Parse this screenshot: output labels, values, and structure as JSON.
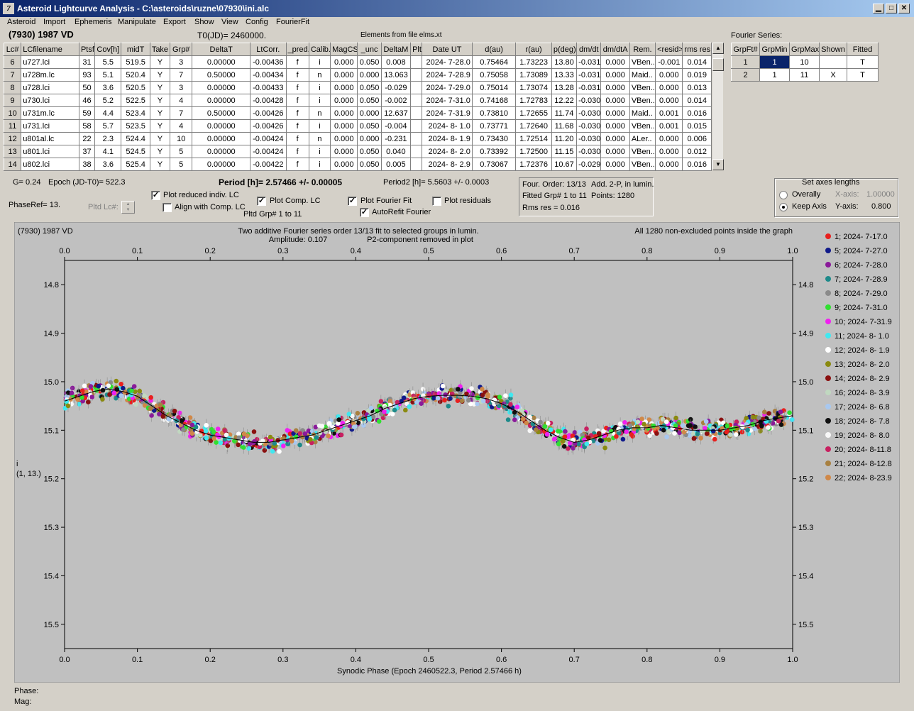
{
  "window": {
    "title": "Asteroid Lightcurve Analysis - C:\\asteroids\\ruzne\\07930\\ini.alc"
  },
  "menu": [
    "Asteroid",
    "Import",
    "Ephemeris",
    "Manipulate",
    "Export",
    "Show",
    "View",
    "Config",
    "FourierFit"
  ],
  "header": {
    "asteroid": "(7930) 1987 VD",
    "t0": "T0(JD)= 2460000.",
    "elements": "Elements from file elms.xt"
  },
  "lc_table": {
    "columns": [
      "Lc#",
      "LCfilename",
      "Ptsf",
      "Cov[h]",
      "midT",
      "Take",
      "Grp#",
      "DeltaT",
      "LtCorr.",
      "_pred.",
      "Calib.",
      "MagCS",
      "_unc",
      "DeltaM",
      "Plt",
      "Date UT",
      "d(au)",
      "r(au)",
      "p(deg)",
      "dm/dt",
      "dm/dtA",
      "Rem.",
      "<resid>",
      "rms res"
    ],
    "rows": [
      [
        "6",
        "u727.lci",
        "31",
        "5.5",
        "519.5",
        "Y",
        "3",
        "0.00000",
        "-0.00436",
        "f",
        "i",
        "0.000",
        "0.050",
        "0.008",
        "",
        "2024- 7-28.0",
        "0.75464",
        "1.73223",
        "13.80",
        "-0.031",
        "0.000",
        "VBen..",
        "-0.001",
        "0.014"
      ],
      [
        "7",
        "u728m.lc",
        "93",
        "5.1",
        "520.4",
        "Y",
        "7",
        "0.50000",
        "-0.00434",
        "f",
        "n",
        "0.000",
        "0.000",
        "13.063",
        "",
        "2024- 7-28.9",
        "0.75058",
        "1.73089",
        "13.33",
        "-0.031",
        "0.000",
        "Maid..",
        "0.000",
        "0.019"
      ],
      [
        "8",
        "u728.lci",
        "50",
        "3.6",
        "520.5",
        "Y",
        "3",
        "0.00000",
        "-0.00433",
        "f",
        "i",
        "0.000",
        "0.050",
        "-0.029",
        "",
        "2024- 7-29.0",
        "0.75014",
        "1.73074",
        "13.28",
        "-0.031",
        "0.000",
        "VBen..",
        "0.000",
        "0.013"
      ],
      [
        "9",
        "u730.lci",
        "46",
        "5.2",
        "522.5",
        "Y",
        "4",
        "0.00000",
        "-0.00428",
        "f",
        "i",
        "0.000",
        "0.050",
        "-0.002",
        "",
        "2024- 7-31.0",
        "0.74168",
        "1.72783",
        "12.22",
        "-0.030",
        "0.000",
        "VBen..",
        "0.000",
        "0.014"
      ],
      [
        "10",
        "u731m.lc",
        "59",
        "4.4",
        "523.4",
        "Y",
        "7",
        "0.50000",
        "-0.00426",
        "f",
        "n",
        "0.000",
        "0.000",
        "12.637",
        "",
        "2024- 7-31.9",
        "0.73810",
        "1.72655",
        "11.74",
        "-0.030",
        "0.000",
        "Maid..",
        "0.001",
        "0.016"
      ],
      [
        "11",
        "u731.lci",
        "58",
        "5.7",
        "523.5",
        "Y",
        "4",
        "0.00000",
        "-0.00426",
        "f",
        "i",
        "0.000",
        "0.050",
        "-0.004",
        "",
        "2024- 8- 1.0",
        "0.73771",
        "1.72640",
        "11.68",
        "-0.030",
        "0.000",
        "VBen..",
        "0.001",
        "0.015"
      ],
      [
        "12",
        "u801al.lc",
        "22",
        "2.3",
        "524.4",
        "Y",
        "10",
        "0.00000",
        "-0.00424",
        "f",
        "n",
        "0.000",
        "0.000",
        "-0.231",
        "",
        "2024- 8- 1.9",
        "0.73430",
        "1.72514",
        "11.20",
        "-0.030",
        "0.000",
        "ALer..",
        "0.000",
        "0.006"
      ],
      [
        "13",
        "u801.lci",
        "37",
        "4.1",
        "524.5",
        "Y",
        "5",
        "0.00000",
        "-0.00424",
        "f",
        "i",
        "0.000",
        "0.050",
        "0.040",
        "",
        "2024- 8- 2.0",
        "0.73392",
        "1.72500",
        "11.15",
        "-0.030",
        "0.000",
        "VBen..",
        "0.000",
        "0.012"
      ],
      [
        "14",
        "u802.lci",
        "38",
        "3.6",
        "525.4",
        "Y",
        "5",
        "0.00000",
        "-0.00422",
        "f",
        "i",
        "0.000",
        "0.050",
        "0.005",
        "",
        "2024- 8- 2.9",
        "0.73067",
        "1.72376",
        "10.67",
        "-0.029",
        "0.000",
        "VBen..",
        "0.000",
        "0.016"
      ]
    ]
  },
  "fourier_series": {
    "label": "Fourier Series:",
    "columns": [
      "GrpFt#",
      "GrpMin",
      "GrpMax",
      "Shown",
      "Fitted"
    ],
    "rows": [
      [
        "1",
        "1",
        "10",
        "",
        "T"
      ],
      [
        "2",
        "1",
        "11",
        "X",
        "T"
      ]
    ]
  },
  "info": {
    "g": "G= 0.24",
    "epoch": "Epoch (JD-T0)= 522.3",
    "phaseref": "PhaseRef= 13.",
    "pltd_lc": "Pltd Lc#:",
    "period": "Period [h]= 2.57466 +/- 0.00005",
    "period2": "Period2 [h]= 5.5603 +/- 0.0003",
    "pltd_grp": "Pltd Grp#  1   to   11"
  },
  "checkboxes": {
    "plot_reduced": {
      "label": "Plot reduced indiv. LC",
      "checked": true
    },
    "align_comp": {
      "label": "Align with Comp. LC",
      "checked": false
    },
    "plot_comp": {
      "label": "Plot Comp. LC",
      "checked": true
    },
    "plot_fourier": {
      "label": "Plot Fourier Fit",
      "checked": true
    },
    "autorefit": {
      "label": "AutoRefit Fourier",
      "checked": true
    },
    "plot_residuals": {
      "label": "Plot residuals",
      "checked": false
    }
  },
  "fourier_info": {
    "line1a": "Four. Order: 13/13",
    "line1b": "Add. 2-P, in lumin.",
    "line2a": "Fitted Grp# 1 to 11",
    "line2b": "Points: 1280",
    "line3": "Rms res      = 0.016"
  },
  "axes_panel": {
    "title": "Set axes lengths",
    "overally": "Overally",
    "keep_axis": "Keep Axis",
    "selected": "keep_axis",
    "x_label": "X-axis:",
    "x_value": "1.00000",
    "y_label": "Y-axis:",
    "y_value": "0.800"
  },
  "chart_data": {
    "type": "scatter",
    "title_left": "(7930) 1987 VD",
    "title": "Two additive Fourier series order 13/13 fit to selected groups in lumin.",
    "subtitle_a": "Amplitude: 0.107",
    "subtitle_b": "P2-component removed in plot",
    "title_right": "All 1280 non-excluded points inside the graph",
    "xlabel": "Synodic Phase (Epoch 2460522.3, Period 2.57466 h)",
    "ylabel": "i",
    "ylabel2": "(1, 13.)",
    "xlim": [
      0.0,
      1.0
    ],
    "ylim": [
      15.55,
      14.75
    ],
    "x_ticks": [
      "0.0",
      "0.1",
      "0.2",
      "0.3",
      "0.4",
      "0.5",
      "0.6",
      "0.7",
      "0.8",
      "0.9",
      "1.0"
    ],
    "y_ticks": [
      "14.8",
      "14.9",
      "15.0",
      "15.1",
      "15.2",
      "15.3",
      "15.4",
      "15.5"
    ],
    "fit_curve": {
      "x": [
        0.0,
        0.02,
        0.04,
        0.06,
        0.08,
        0.1,
        0.12,
        0.14,
        0.16,
        0.18,
        0.2,
        0.22,
        0.24,
        0.26,
        0.28,
        0.3,
        0.32,
        0.34,
        0.36,
        0.38,
        0.4,
        0.42,
        0.44,
        0.46,
        0.48,
        0.5,
        0.52,
        0.54,
        0.56,
        0.58,
        0.6,
        0.62,
        0.64,
        0.66,
        0.68,
        0.7,
        0.72,
        0.74,
        0.76,
        0.78,
        0.8,
        0.82,
        0.84,
        0.86,
        0.88,
        0.9,
        0.92,
        0.94,
        0.96,
        0.98,
        1.0
      ],
      "y": [
        15.04,
        15.03,
        15.02,
        15.015,
        15.02,
        15.03,
        15.05,
        15.07,
        15.085,
        15.1,
        15.11,
        15.115,
        15.12,
        15.125,
        15.125,
        15.12,
        15.115,
        15.11,
        15.1,
        15.09,
        15.08,
        15.07,
        15.055,
        15.045,
        15.035,
        15.03,
        15.028,
        15.028,
        15.03,
        15.035,
        15.045,
        15.06,
        15.08,
        15.1,
        15.115,
        15.125,
        15.12,
        15.11,
        15.1,
        15.095,
        15.095,
        15.09,
        15.095,
        15.1,
        15.1,
        15.1,
        15.095,
        15.09,
        15.08,
        15.075,
        15.07
      ]
    },
    "scatter": "1280 points around fit curve, sigma ~0.018 mag",
    "series": [
      {
        "name": "1; 2024- 7-17.0",
        "color": "#e8201e"
      },
      {
        "name": "5; 2024- 7-27.0",
        "color": "#101a8a"
      },
      {
        "name": "6; 2024- 7-28.0",
        "color": "#8a1a9a"
      },
      {
        "name": "7; 2024- 7-28.9",
        "color": "#1e8a8a"
      },
      {
        "name": "8; 2024- 7-29.0",
        "color": "#8a8a8a"
      },
      {
        "name": "9; 2024- 7-31.0",
        "color": "#30e030"
      },
      {
        "name": "10; 2024- 7-31.9",
        "color": "#f020f0"
      },
      {
        "name": "11; 2024- 8- 1.0",
        "color": "#40e8f0"
      },
      {
        "name": "12; 2024- 8- 1.9",
        "color": "#ffffff"
      },
      {
        "name": "13; 2024- 8- 2.0",
        "color": "#8a8a10"
      },
      {
        "name": "14; 2024- 8- 2.9",
        "color": "#8a1010"
      },
      {
        "name": "16; 2024- 8- 3.9",
        "color": "#c0d8c0"
      },
      {
        "name": "17; 2024- 8- 6.8",
        "color": "#a8c8f0"
      },
      {
        "name": "18; 2024- 8- 7.8",
        "color": "#101010"
      },
      {
        "name": "19; 2024- 8- 8.0",
        "color": "#f8f8f8"
      },
      {
        "name": "20; 2024- 8-11.8",
        "color": "#c82060"
      },
      {
        "name": "21; 2024- 8-12.8",
        "color": "#a88040"
      },
      {
        "name": "22; 2024- 8-23.9",
        "color": "#d08848"
      }
    ]
  },
  "status": {
    "phase": "Phase:",
    "mag": "Mag:"
  }
}
